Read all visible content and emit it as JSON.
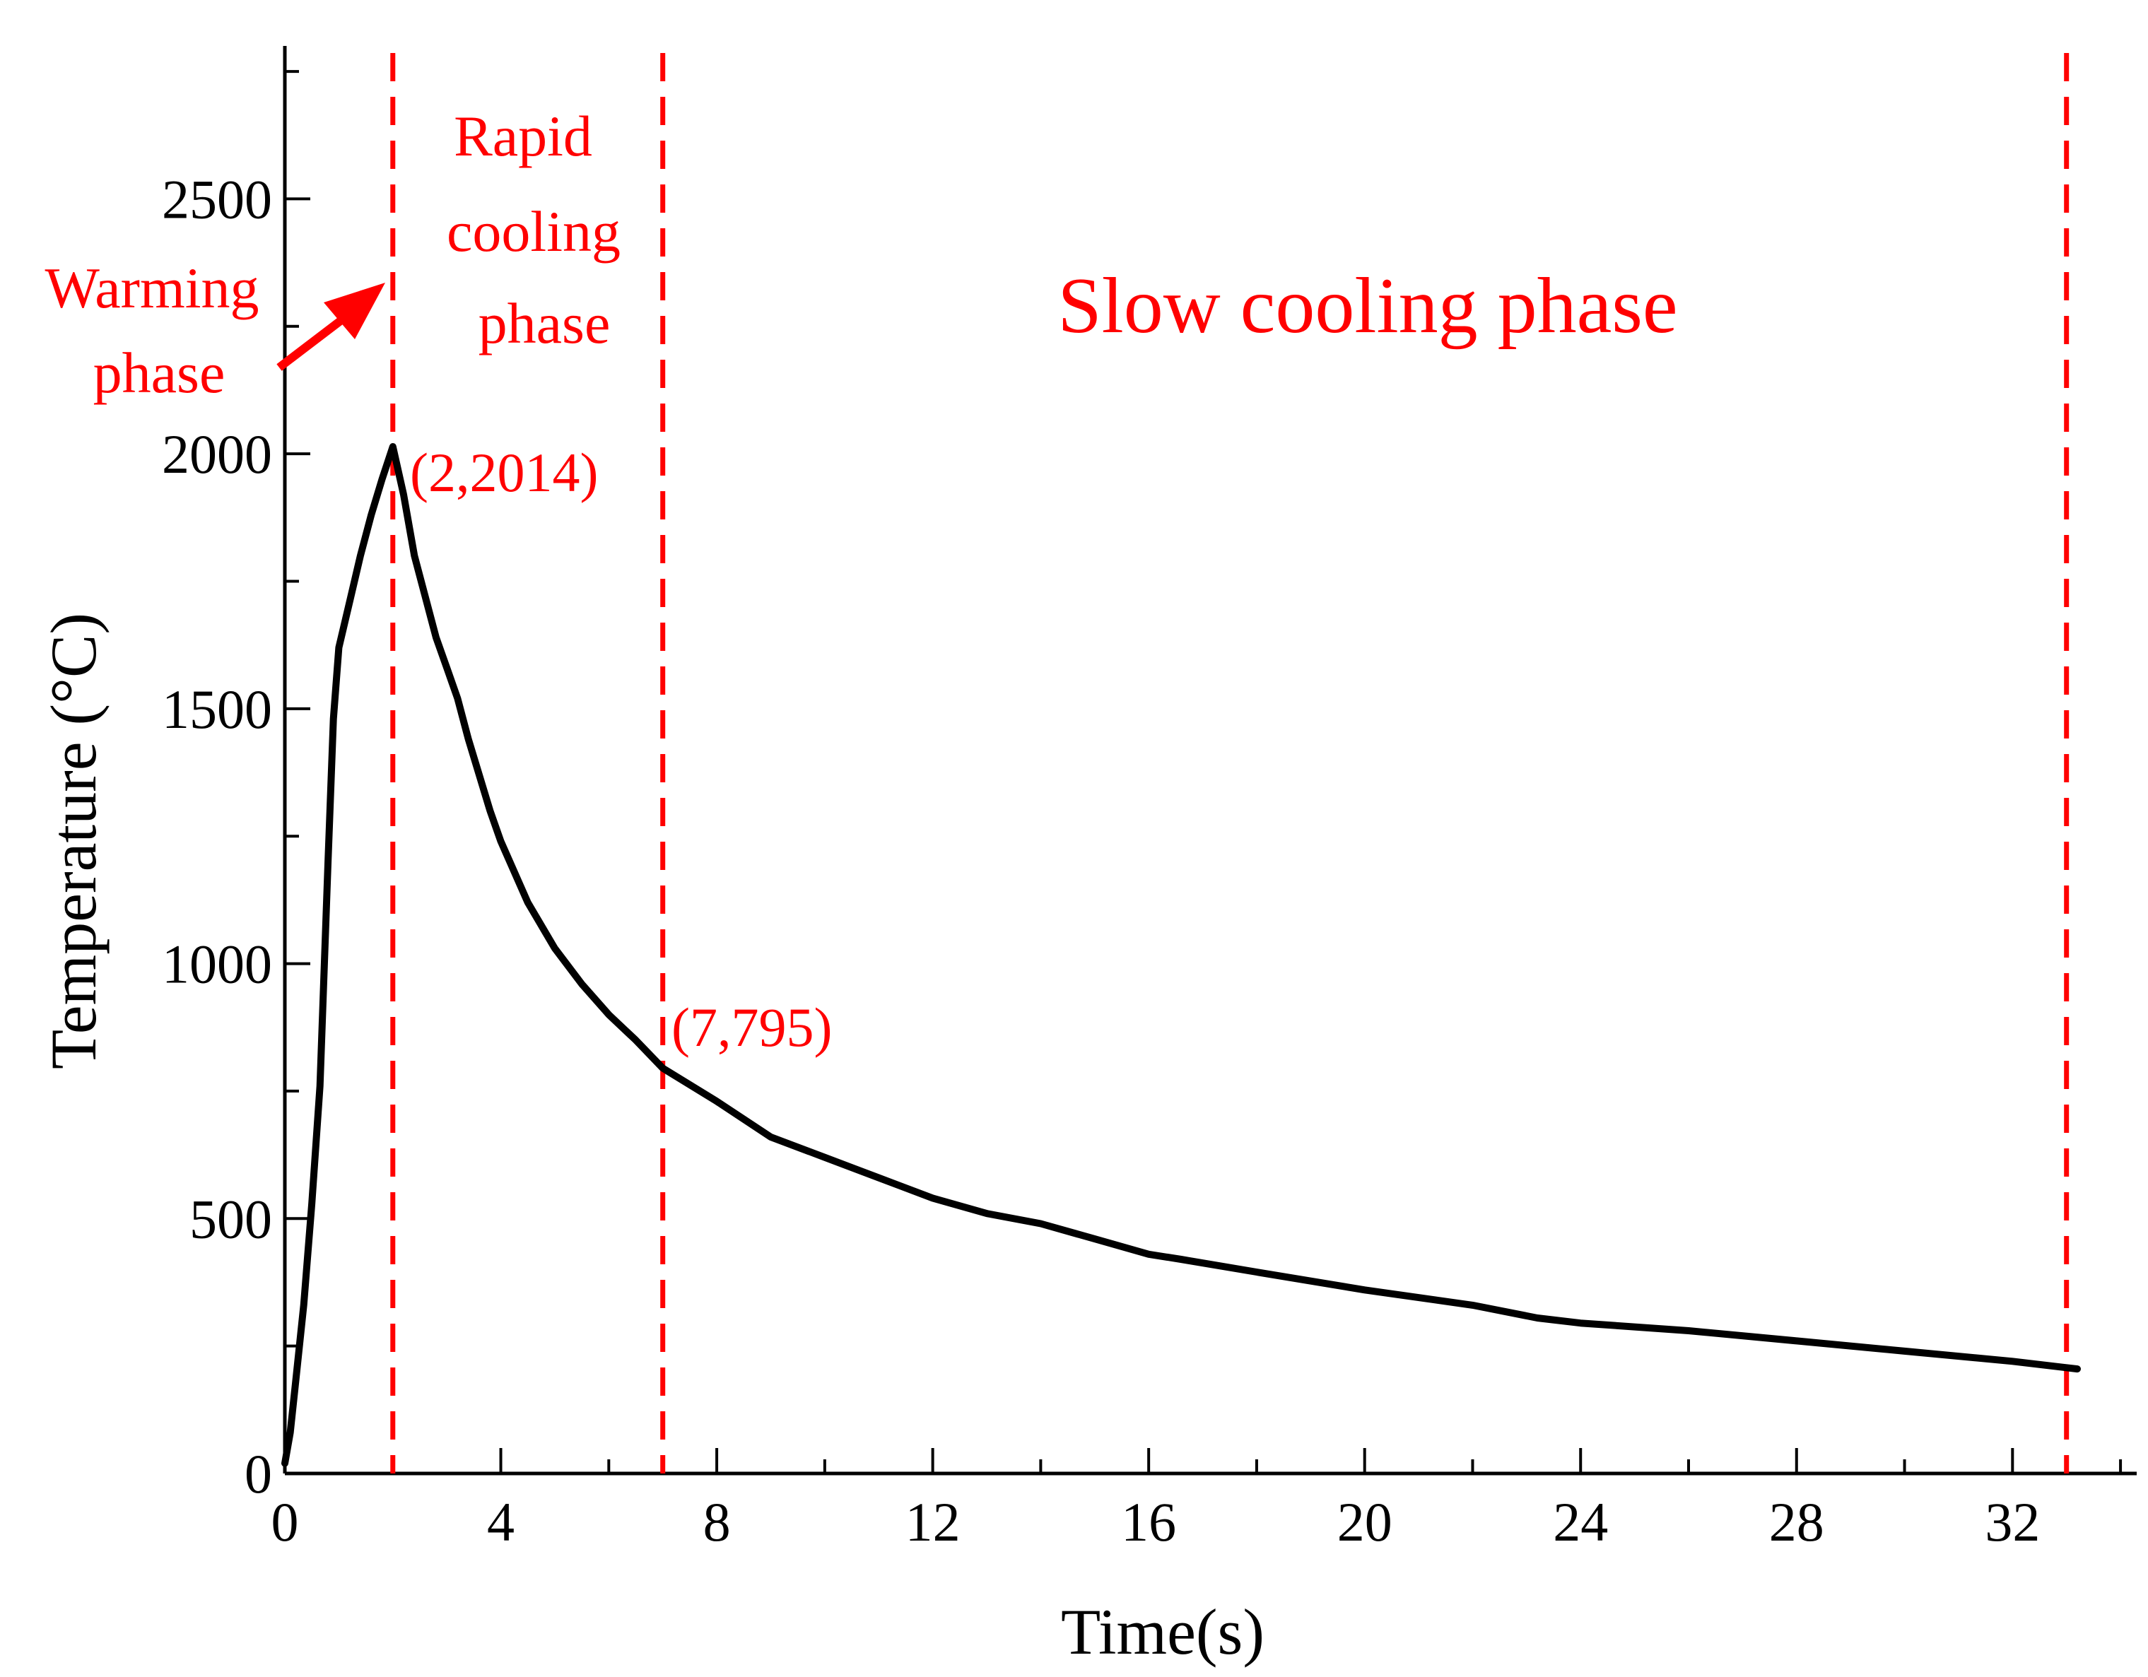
{
  "chart_data": {
    "type": "line",
    "title": "",
    "xlabel": "Time(s)",
    "ylabel": "Temperature (°C)",
    "xlim": [
      0,
      34.3
    ],
    "ylim": [
      0,
      2800
    ],
    "x_ticks": [
      0,
      4,
      8,
      12,
      16,
      20,
      24,
      28,
      32
    ],
    "y_ticks": [
      0,
      500,
      1000,
      1500,
      2000,
      2500
    ],
    "grid": false,
    "line_color": "#000000",
    "accent_color": "#ff0000",
    "series": [
      {
        "x": [
          0,
          0.1,
          0.2,
          0.35,
          0.5,
          0.65,
          0.8,
          0.9,
          1.0,
          1.2,
          1.4,
          1.6,
          1.8,
          2.0,
          2.2,
          2.4,
          2.6,
          2.8,
          3.0,
          3.2,
          3.4,
          3.6,
          3.8,
          4.0,
          4.5,
          5.0,
          5.5,
          6.0,
          6.5,
          7.0,
          8.0,
          9.0,
          10.0,
          11.0,
          12.0,
          13.0,
          14.0,
          15.0,
          16.0,
          16.6,
          18.0,
          20.0,
          22.0,
          23.2,
          24.0,
          26.0,
          28.0,
          30.0,
          32.0,
          33.2
        ],
        "y": [
          20,
          80,
          180,
          330,
          530,
          760,
          1200,
          1480,
          1620,
          1710,
          1800,
          1880,
          1950,
          2014,
          1920,
          1800,
          1720,
          1640,
          1580,
          1520,
          1440,
          1370,
          1300,
          1240,
          1120,
          1030,
          960,
          900,
          850,
          795,
          730,
          660,
          620,
          580,
          540,
          510,
          490,
          460,
          430,
          420,
          395,
          360,
          330,
          305,
          295,
          280,
          260,
          240,
          220,
          205
        ]
      }
    ],
    "markers": [
      2,
      7,
      33
    ],
    "annotations": {
      "peak": "(2,2014)",
      "end_rapid": "(7,795)",
      "warming_1": "Warming",
      "warming_2": "phase",
      "rapid_1": "Rapid",
      "rapid_2": "cooling",
      "rapid_3": "phase",
      "slow": "Slow cooling phase"
    }
  }
}
